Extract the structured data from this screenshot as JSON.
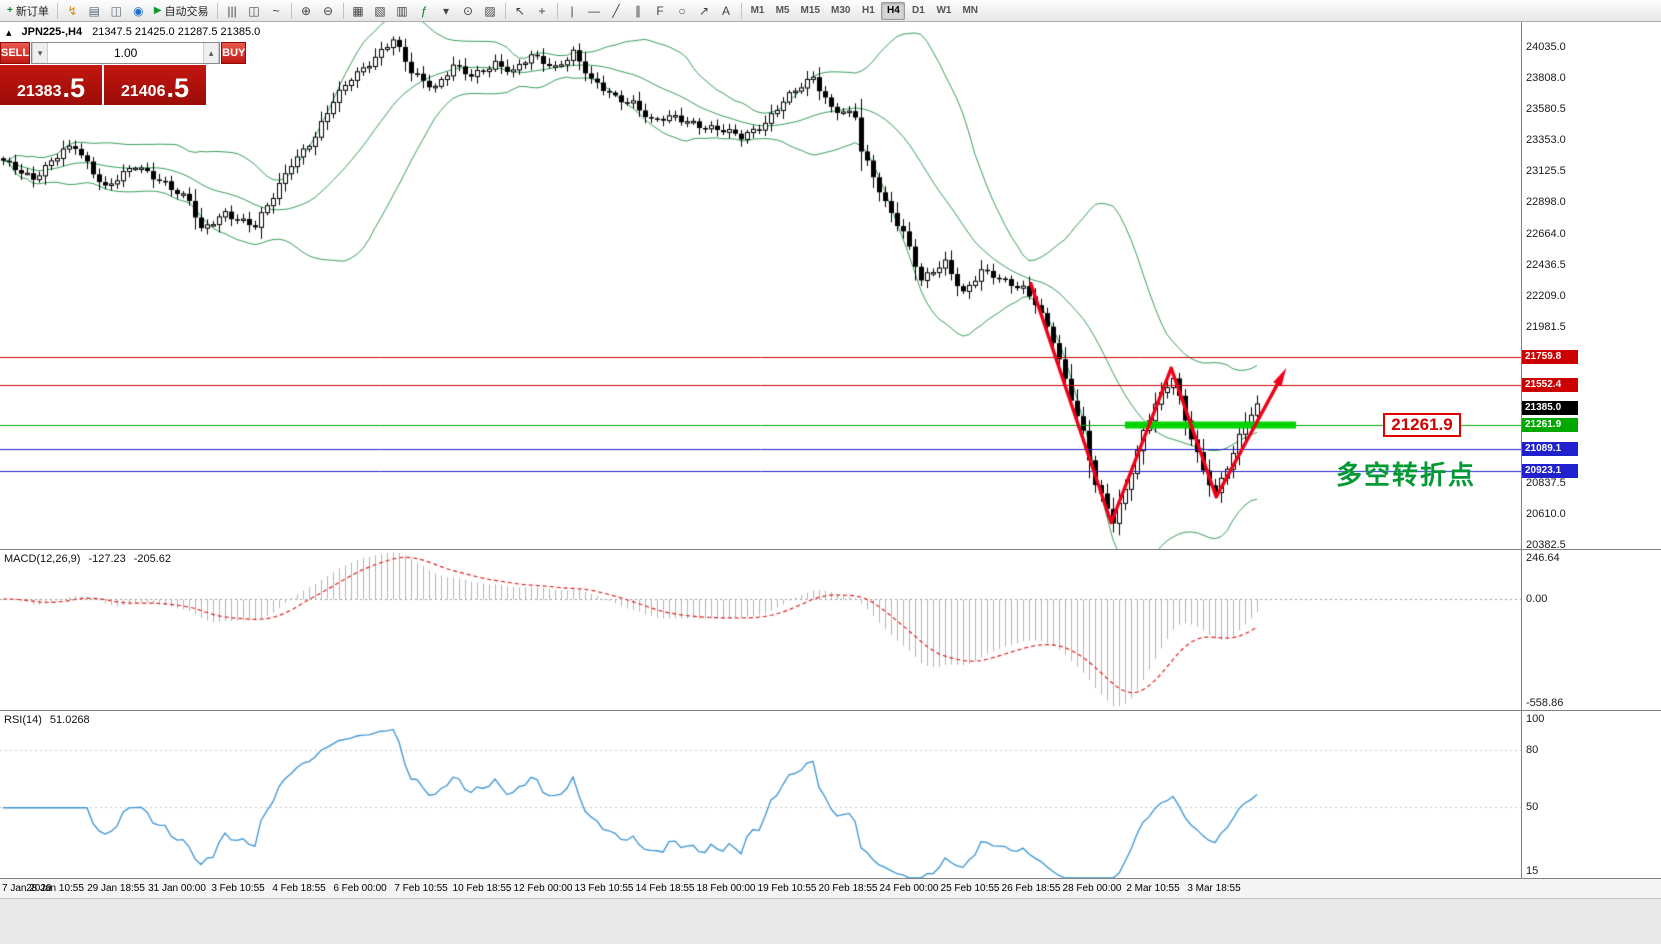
{
  "toolbar": {
    "items": [
      {
        "type": "newOrder",
        "name": "new-order-button",
        "glyph": "+",
        "label": "新订单"
      },
      {
        "type": "sep"
      },
      {
        "type": "icon",
        "name": "expert-advisor-icon",
        "glyph": "↯",
        "color": "#d98a00"
      },
      {
        "type": "icon",
        "name": "chart-profile-icon",
        "glyph": "▤",
        "color": "#5a6b7d"
      },
      {
        "type": "icon",
        "name": "data-window-icon",
        "glyph": "◫",
        "color": "#5a6b7d"
      },
      {
        "type": "icon",
        "name": "strategy-tester-icon",
        "glyph": "◉",
        "color": "#1f6fd0"
      },
      {
        "type": "auto",
        "name": "auto-trading-button",
        "glyph": "▶",
        "label": "自动交易"
      },
      {
        "type": "sep"
      },
      {
        "type": "icon",
        "name": "bar-chart-icon",
        "glyph": "|||",
        "color": "#444"
      },
      {
        "type": "icon",
        "name": "candlestick-chart-icon",
        "glyph": "◫",
        "color": "#444"
      },
      {
        "type": "icon",
        "name": "line-chart-icon",
        "glyph": "~",
        "color": "#444"
      },
      {
        "type": "sep"
      },
      {
        "type": "icon",
        "name": "zoom-in-icon",
        "glyph": "⊕",
        "color": "#444"
      },
      {
        "type": "icon",
        "name": "zoom-out-icon",
        "glyph": "⊖",
        "color": "#444"
      },
      {
        "type": "sep"
      },
      {
        "type": "icon",
        "name": "tile-windows-icon",
        "glyph": "▦",
        "color": "#444"
      },
      {
        "type": "icon",
        "name": "cascade-windows-icon",
        "glyph": "▧",
        "color": "#444"
      },
      {
        "type": "icon",
        "name": "arrange-windows-icon",
        "glyph": "▥",
        "color": "#444"
      },
      {
        "type": "icon",
        "name": "indicators-icon",
        "glyph": "ƒ",
        "color": "#0a7a2f"
      },
      {
        "type": "icon",
        "name": "indicators-dropdown-icon",
        "glyph": "▾",
        "color": "#444"
      },
      {
        "type": "icon",
        "name": "periods-icon",
        "glyph": "⊙",
        "color": "#444"
      },
      {
        "type": "icon",
        "name": "templates-icon",
        "glyph": "▨",
        "color": "#444"
      },
      {
        "type": "sep"
      },
      {
        "type": "icon",
        "name": "cursor-icon",
        "glyph": "↖",
        "color": "#444"
      },
      {
        "type": "icon",
        "name": "crosshair-icon",
        "glyph": "+",
        "color": "#444"
      },
      {
        "type": "sep"
      },
      {
        "type": "icon",
        "name": "vertical-line-icon",
        "glyph": "|",
        "color": "#444"
      },
      {
        "type": "icon",
        "name": "horizontal-line-icon",
        "glyph": "—",
        "color": "#444"
      },
      {
        "type": "icon",
        "name": "trendline-icon",
        "glyph": "╱",
        "color": "#444"
      },
      {
        "type": "icon",
        "name": "equidistant-channel-icon",
        "glyph": "∥",
        "color": "#444"
      },
      {
        "type": "icon",
        "name": "fibonacci-icon",
        "glyph": "F",
        "color": "#444"
      },
      {
        "type": "icon",
        "name": "shapes-icon",
        "glyph": "○",
        "color": "#444"
      },
      {
        "type": "icon",
        "name": "arrows-icon",
        "glyph": "↗",
        "color": "#444"
      },
      {
        "type": "icon",
        "name": "text-label-icon",
        "glyph": "A",
        "color": "#444"
      },
      {
        "type": "sep"
      }
    ],
    "timeframes": [
      "M1",
      "M5",
      "M15",
      "M30",
      "H1",
      "H4",
      "D1",
      "W1",
      "MN"
    ],
    "active_timeframe": "H4"
  },
  "chart_header": {
    "symbol_icon_glyph": "▴",
    "symbol": "JPN225-,H4",
    "ohlc": "21347.5 21425.0 21287.5 21385.0"
  },
  "trade_panel": {
    "sell_label": "SELL",
    "buy_label": "BUY",
    "volume": "1.00",
    "volume_down_glyph": "▾",
    "volume_up_glyph": "▴",
    "sell_price_int": "21383",
    "sell_price_dec": ".5",
    "buy_price_int": "21406",
    "buy_price_dec": ".5"
  },
  "annotations": {
    "callout_price": "21261.9",
    "turning_point_text": "多空转折点"
  },
  "chart_data": {
    "type": "candlestick",
    "symbol": "JPN225-",
    "timeframe": "H4",
    "ohlc_current": {
      "open": 21347.5,
      "high": 21425.0,
      "low": 21287.5,
      "close": 21385.0
    },
    "bid": 21383.5,
    "ask": 21406.5,
    "y_axis": {
      "min": 20352,
      "max": 24220,
      "labels": [
        24035.0,
        23808.0,
        23580.5,
        23353.0,
        23125.5,
        22898.0,
        22664.0,
        22436.5,
        22209.0,
        21981.5,
        20837.5,
        20610.0,
        20382.5
      ]
    },
    "x_axis_labels": [
      "7 Jan 2020",
      "28 Jan 10:55",
      "29 Jan 18:55",
      "31 Jan 00:00",
      "3 Feb 10:55",
      "4 Feb 18:55",
      "6 Feb 00:00",
      "7 Feb 10:55",
      "10 Feb 18:55",
      "12 Feb 00:00",
      "13 Feb 10:55",
      "14 Feb 18:55",
      "18 Feb 00:00",
      "19 Feb 10:55",
      "20 Feb 18:55",
      "24 Feb 00:00",
      "25 Feb 10:55",
      "26 Feb 18:55",
      "28 Feb 00:00",
      "2 Mar 10:55",
      "3 Mar 18:55"
    ],
    "bars": 210,
    "close_path": [
      [
        0,
        23190
      ],
      [
        5,
        23080
      ],
      [
        10,
        23266
      ],
      [
        12,
        23300
      ],
      [
        17,
        23010
      ],
      [
        22,
        23155
      ],
      [
        27,
        23045
      ],
      [
        31,
        22900
      ],
      [
        33,
        22680
      ],
      [
        37,
        22825
      ],
      [
        42,
        22715
      ],
      [
        45,
        22935
      ],
      [
        48,
        23190
      ],
      [
        52,
        23375
      ],
      [
        55,
        23630
      ],
      [
        58,
        23816
      ],
      [
        62,
        23960
      ],
      [
        65,
        24080
      ],
      [
        68,
        23855
      ],
      [
        72,
        23745
      ],
      [
        75,
        23890
      ],
      [
        78,
        23816
      ],
      [
        82,
        23926
      ],
      [
        85,
        23853
      ],
      [
        88,
        23963
      ],
      [
        92,
        23890
      ],
      [
        95,
        24000
      ],
      [
        98,
        23780
      ],
      [
        102,
        23670
      ],
      [
        105,
        23632
      ],
      [
        108,
        23486
      ],
      [
        112,
        23520
      ],
      [
        115,
        23486
      ],
      [
        117,
        23449
      ],
      [
        120,
        23413
      ],
      [
        123,
        23376
      ],
      [
        127,
        23486
      ],
      [
        130,
        23632
      ],
      [
        133,
        23743
      ],
      [
        135,
        23816
      ],
      [
        138,
        23596
      ],
      [
        142,
        23520
      ],
      [
        143,
        23266
      ],
      [
        147,
        22900
      ],
      [
        150,
        22680
      ],
      [
        153,
        22311
      ],
      [
        157,
        22458
      ],
      [
        160,
        22238
      ],
      [
        163,
        22385
      ],
      [
        167,
        22311
      ],
      [
        170,
        22275
      ],
      [
        172,
        22165
      ],
      [
        175,
        21871
      ],
      [
        177,
        21578
      ],
      [
        180,
        21211
      ],
      [
        182,
        20844
      ],
      [
        185,
        20550
      ],
      [
        187,
        20770
      ],
      [
        190,
        21211
      ],
      [
        192,
        21431
      ],
      [
        195,
        21615
      ],
      [
        197,
        21284
      ],
      [
        200,
        20917
      ],
      [
        202,
        20770
      ],
      [
        205,
        21064
      ],
      [
        207,
        21284
      ],
      [
        209,
        21385
      ]
    ],
    "bollinger_bands": {
      "period": 20,
      "deviation": 2,
      "color": "#3a9e5c"
    },
    "price_lines": [
      {
        "label": "21759.8",
        "price": 21759.8,
        "color": "#cc0000"
      },
      {
        "label": "21552.4",
        "price": 21552.4,
        "color": "#cc0000"
      },
      {
        "label": "21385.0",
        "price": 21385.0,
        "color": "#000000",
        "no_line": true
      },
      {
        "label": "21261.9",
        "price": 21261.9,
        "color": "#00a800"
      },
      {
        "label": "21089.1",
        "price": 21089.1,
        "color": "#2020cc"
      },
      {
        "label": "20923.1",
        "price": 20923.1,
        "color": "#2020cc"
      }
    ],
    "support_zone": {
      "price": 21261.9,
      "bar_from": 187,
      "bar_to": 215.5,
      "color": "#00d300",
      "thickness": 7
    },
    "zigzag": [
      [
        171.3,
        22300
      ],
      [
        184.7,
        20545
      ],
      [
        194.7,
        21680
      ],
      [
        202.2,
        20735
      ],
      [
        213,
        21610
      ]
    ],
    "zigzag_color": "#f00018",
    "indicators": {
      "macd": {
        "label": "MACD(12,26,9)",
        "value_main": "-127.23",
        "value_signal": "-205.62",
        "params": [
          12,
          26,
          9
        ],
        "axis": [
          "246.64",
          "0.00",
          "-558.86"
        ],
        "range": [
          -558.86,
          246.64
        ]
      },
      "rsi": {
        "label": "RSI(14)",
        "value": "51.0268",
        "period": 14,
        "axis": [
          "100",
          "80",
          "50",
          "15"
        ],
        "range": [
          12,
          101
        ],
        "levels": [
          80,
          50
        ]
      }
    }
  }
}
